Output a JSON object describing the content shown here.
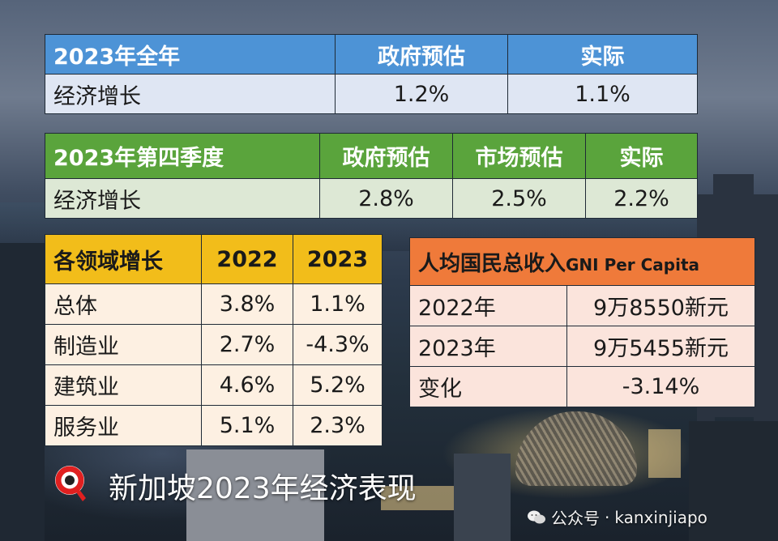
{
  "table_full_year": {
    "headers": [
      "2023年全年",
      "政府预估",
      "实际"
    ],
    "row": [
      "经济增长",
      "1.2%",
      "1.1%"
    ]
  },
  "table_q4": {
    "headers": [
      "2023年第四季度",
      "政府预估",
      "市场预估",
      "实际"
    ],
    "row": [
      "经济增长",
      "2.8%",
      "2.5%",
      "2.2%"
    ]
  },
  "table_sectors": {
    "headers": [
      "各领域增长",
      "2022",
      "2023"
    ],
    "rows": [
      {
        "label": "总体",
        "v2022": "3.8%",
        "v2023": "1.1%"
      },
      {
        "label": "制造业",
        "v2022": "2.7%",
        "v2023": "-4.3%"
      },
      {
        "label": "建筑业",
        "v2022": "4.6%",
        "v2023": "5.2%"
      },
      {
        "label": "服务业",
        "v2022": "5.1%",
        "v2023": "2.3%"
      }
    ]
  },
  "table_gni": {
    "title_cn": "人均国民总收入",
    "title_en": "GNI Per Capita",
    "rows": [
      {
        "label": "2022年",
        "value": "9万8550新元"
      },
      {
        "label": "2023年",
        "value": "9万5455新元"
      },
      {
        "label": "变化",
        "value": "-3.14%"
      }
    ]
  },
  "caption": "新加坡2023年经济表现",
  "watermark": {
    "prefix": "公众号",
    "separator": "·",
    "account": "kanxinjiapo"
  },
  "colors": {
    "positive": "#2fa84f",
    "negative": "#e01b1b",
    "blue_header": "#4d93d6",
    "green_header": "#5aa43c",
    "yellow_header": "#f2bd1a",
    "orange_header": "#ef7a3a"
  },
  "icons": {
    "logo": "magnifier-pin-logo",
    "watermark": "wechat-icon"
  }
}
